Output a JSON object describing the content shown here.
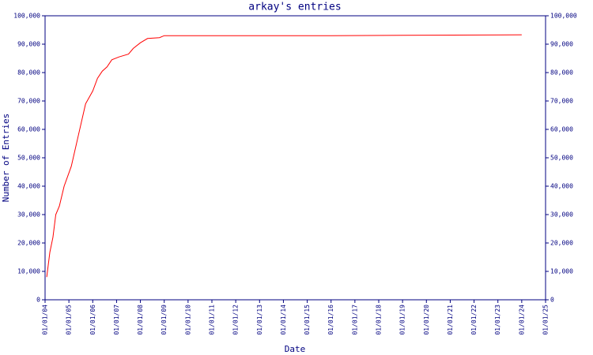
{
  "chart_data": {
    "type": "line",
    "title": "arkay's entries",
    "x_label": "Date",
    "y_label": "Number of Entries",
    "color": "#ff0000",
    "axis_color": "#000080",
    "x": [
      2004.07,
      2004.2,
      2004.33,
      2004.45,
      2004.6,
      2004.8,
      2005.1,
      2005.4,
      2005.7,
      2006.0,
      2006.2,
      2006.4,
      2006.6,
      2006.8,
      2007.1,
      2007.5,
      2007.7,
      2008.0,
      2008.3,
      2008.8,
      2009.0,
      2016.0,
      2024.0
    ],
    "values": [
      8000,
      16700,
      22000,
      30000,
      33000,
      40000,
      47000,
      58000,
      69000,
      73500,
      78000,
      80500,
      82000,
      84500,
      85500,
      86500,
      88500,
      90500,
      92000,
      92300,
      93000,
      93000,
      93300
    ],
    "xlim": [
      2004,
      2025
    ],
    "xticks": [
      {
        "value": 2004,
        "label": "01/01/04"
      },
      {
        "value": 2005,
        "label": "01/01/05"
      },
      {
        "value": 2006,
        "label": "01/01/06"
      },
      {
        "value": 2007,
        "label": "01/01/07"
      },
      {
        "value": 2008,
        "label": "01/01/08"
      },
      {
        "value": 2009,
        "label": "01/01/09"
      },
      {
        "value": 2010,
        "label": "01/01/10"
      },
      {
        "value": 2011,
        "label": "01/01/11"
      },
      {
        "value": 2012,
        "label": "01/01/12"
      },
      {
        "value": 2013,
        "label": "01/01/13"
      },
      {
        "value": 2014,
        "label": "01/01/14"
      },
      {
        "value": 2015,
        "label": "01/01/15"
      },
      {
        "value": 2016,
        "label": "01/01/16"
      },
      {
        "value": 2017,
        "label": "01/01/17"
      },
      {
        "value": 2018,
        "label": "01/01/18"
      },
      {
        "value": 2019,
        "label": "01/01/19"
      },
      {
        "value": 2020,
        "label": "01/01/20"
      },
      {
        "value": 2021,
        "label": "01/01/21"
      },
      {
        "value": 2022,
        "label": "01/01/22"
      },
      {
        "value": 2023,
        "label": "01/01/23"
      },
      {
        "value": 2024,
        "label": "01/01/24"
      },
      {
        "value": 2025,
        "label": "01/01/25"
      }
    ],
    "ylim": [
      0,
      100000
    ],
    "yticks": [
      0,
      {
        "value": 10000,
        "label": "10,000"
      },
      {
        "value": 20000,
        "label": "20,000"
      },
      {
        "value": 30000,
        "label": "30,000"
      },
      {
        "value": 40000,
        "label": "40,000"
      },
      {
        "value": 50000,
        "label": "50,000"
      },
      {
        "value": 60000,
        "label": "60,000"
      },
      {
        "value": 70000,
        "label": "70,000"
      },
      {
        "value": 80000,
        "label": "80,000"
      },
      {
        "value": 90000,
        "label": "90,000"
      },
      {
        "value": 100000,
        "label": "100,000"
      }
    ],
    "y2lim": [
      0,
      100000
    ],
    "y2ticks": [
      0,
      {
        "value": 10000,
        "label": "10,000"
      },
      {
        "value": 20000,
        "label": "20,000"
      },
      {
        "value": 30000,
        "label": "30,000"
      },
      {
        "value": 40000,
        "label": "40,000"
      },
      {
        "value": 50000,
        "label": "50,000"
      },
      {
        "value": 60000,
        "label": "60,000"
      },
      {
        "value": 70000,
        "label": "70,000"
      },
      {
        "value": 80000,
        "label": "80,000"
      },
      {
        "value": 90000,
        "label": "90,000"
      },
      {
        "value": 100000,
        "label": "100,000"
      }
    ]
  }
}
